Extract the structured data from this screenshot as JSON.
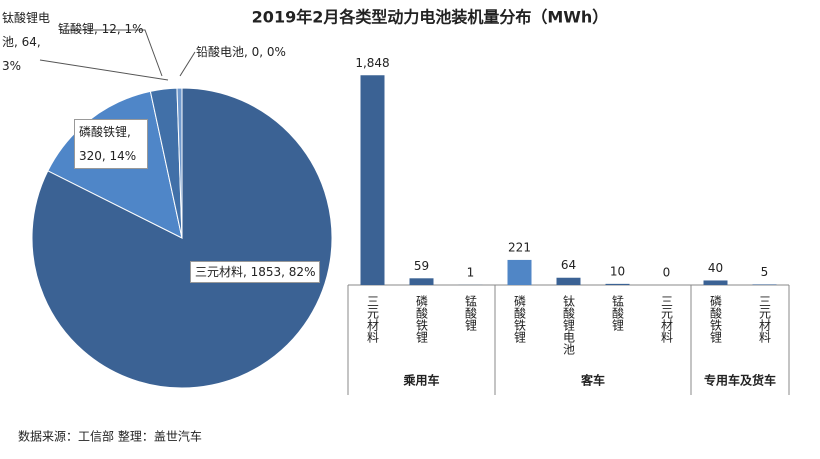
{
  "chart_data": [
    {
      "type": "pie",
      "title": "2019年2月各类型动力电池装机量分布（MWh）",
      "values": [
        1853,
        320,
        64,
        12,
        0
      ],
      "value_labels": [
        "三元材料, 1853, 82%",
        "磷酸铁锂, 320, 14%",
        "钛酸锂电池, 64, 3%",
        "锰酸锂, 12, 1%",
        "铅酸电池, 0, 0%"
      ],
      "colors": [
        "#3b6294",
        "#4f86c8",
        "#4170a8",
        "#6f98cc",
        "#a9c3e4"
      ],
      "note": "数据来源：工信部    整理：盖世汽车"
    },
    {
      "type": "grouped_bar",
      "ylim": [
        0,
        2000
      ],
      "groups": [
        {
          "name": "乘用车",
          "categories": [
            "三元材料",
            "磷酸铁锂",
            "锰酸锂"
          ],
          "values": [
            1848,
            59,
            1
          ],
          "value_labels": [
            "1,848",
            "59",
            "1"
          ],
          "colors": [
            "#3b6294",
            "#3b6294",
            "#3b6294"
          ]
        },
        {
          "name": "客车",
          "categories": [
            "磷酸铁锂",
            "钛酸锂电池",
            "锰酸锂",
            "三元材料"
          ],
          "values": [
            221,
            64,
            10,
            0
          ],
          "value_labels": [
            "221",
            "64",
            "10",
            "0"
          ],
          "colors": [
            "#5086c6",
            "#3b6294",
            "#3b6294",
            "#3b6294"
          ]
        },
        {
          "name": "专用车及货车",
          "categories": [
            "磷酸铁锂",
            "三元材料"
          ],
          "values": [
            40,
            5
          ],
          "value_labels": [
            "40",
            "5"
          ],
          "colors": [
            "#3b6294",
            "#3b6294"
          ]
        }
      ]
    }
  ]
}
